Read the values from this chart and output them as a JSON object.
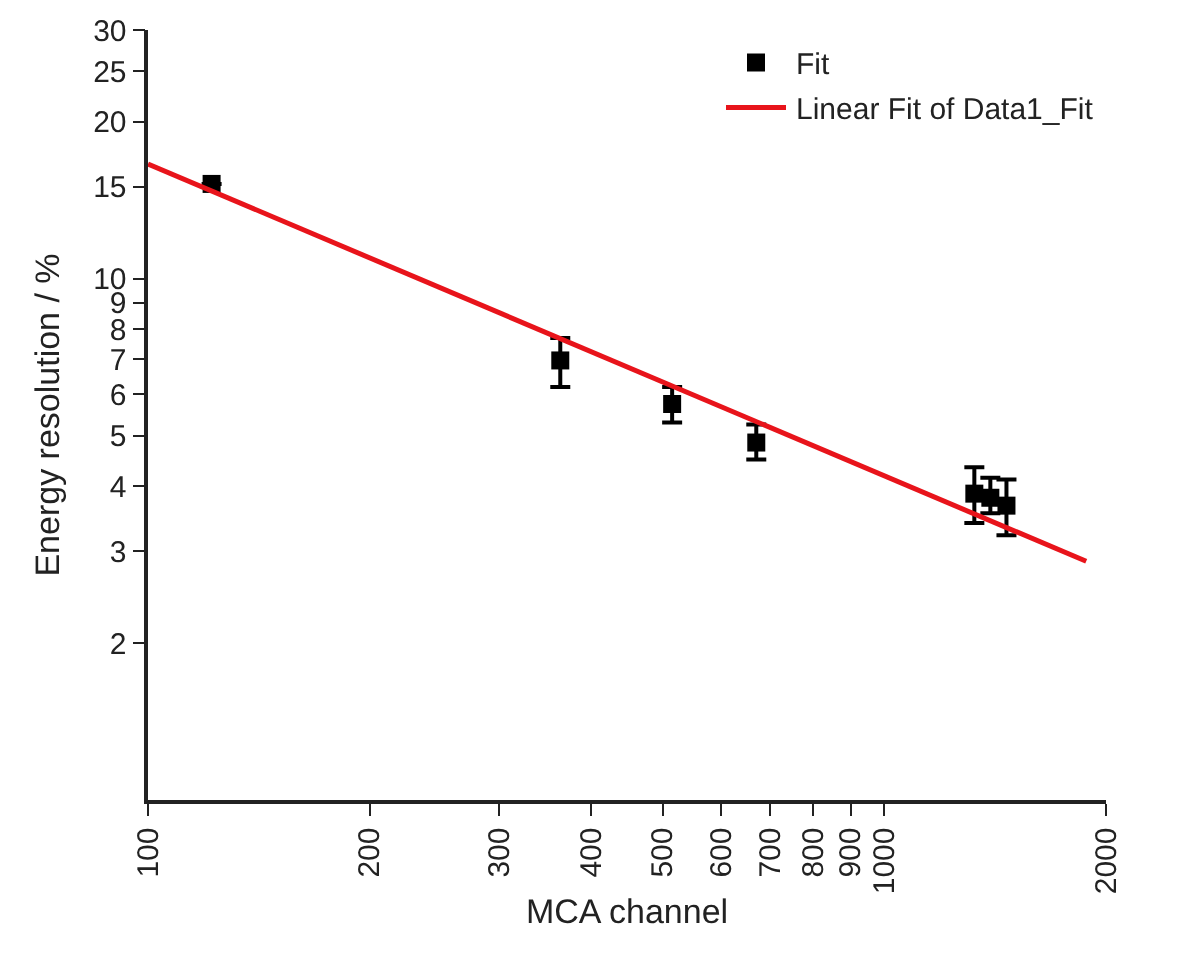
{
  "chart_data": {
    "type": "scatter",
    "xlabel": "MCA channel",
    "ylabel": "Energy resolution / %",
    "log": "xy",
    "grid": false,
    "legend": "top right",
    "xlim": [
      100,
      2000
    ],
    "xticks": [
      100,
      200,
      300,
      400,
      500,
      600,
      700,
      800,
      900,
      1000,
      2000
    ],
    "ylim": [
      1,
      30
    ],
    "yticks": [
      2,
      3,
      4,
      5,
      6,
      7,
      8,
      9,
      10,
      15,
      20,
      25,
      30
    ],
    "series": [
      {
        "name": "Fit",
        "marker": "square",
        "color": "#000000",
        "x": [
          122,
          363,
          515,
          670,
          1325,
          1393,
          1465
        ],
        "values": [
          15.2,
          6.97,
          5.75,
          4.85,
          3.87,
          3.8,
          3.67
        ],
        "errors": [
          null,
          [
            6.2,
            7.7
          ],
          [
            5.3,
            6.2
          ],
          [
            4.5,
            5.25
          ],
          [
            3.4,
            4.35
          ],
          [
            3.55,
            4.15
          ],
          [
            3.22,
            4.12
          ]
        ]
      },
      {
        "name": "Linear Fit of Data1_Fit",
        "type": "line",
        "marker": "none",
        "color": "#e8141b",
        "line_style": "solid",
        "x": [
          100,
          1880
        ],
        "values": [
          16.6,
          2.87
        ]
      }
    ]
  }
}
